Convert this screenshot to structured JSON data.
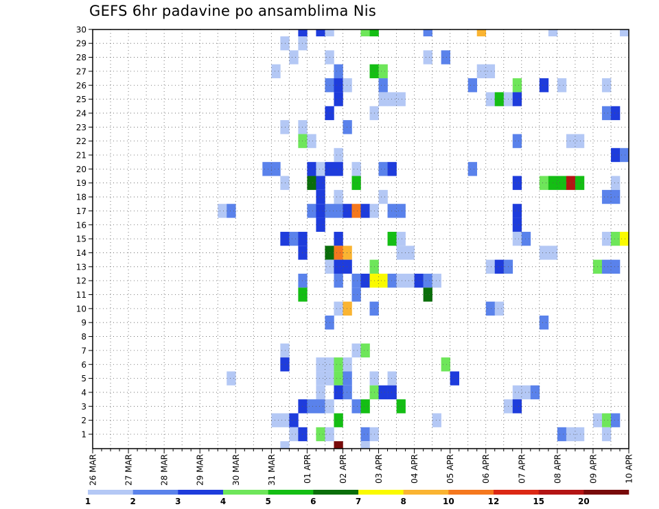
{
  "chart_data": {
    "type": "heatmap",
    "title": "GEFS 6hr padavine po ansamblima Nis",
    "xlabel": "",
    "ylabel": "",
    "y_members": [
      1,
      2,
      3,
      4,
      5,
      6,
      7,
      8,
      9,
      10,
      11,
      12,
      13,
      14,
      15,
      16,
      17,
      18,
      19,
      20,
      21,
      22,
      23,
      24,
      25,
      26,
      27,
      28,
      29,
      30
    ],
    "x_dates": [
      "26 MAR",
      "27 MAR",
      "28 MAR",
      "29 MAR",
      "30 MAR",
      "31 MAR",
      "01 APR",
      "02 APR",
      "03 APR",
      "04 APR",
      "05 APR",
      "06 APR",
      "07 APR",
      "08 APR",
      "09 APR",
      "10 APR"
    ],
    "x_step": "6hr",
    "legend": {
      "placement": "bottom",
      "thresholds": [
        "1",
        "2",
        "3",
        "4",
        "5",
        "6",
        "7",
        "8",
        "10",
        "12",
        "15",
        "20"
      ],
      "colors": [
        "#b4c8f5",
        "#5a82eb",
        "#1e3cdc",
        "#6ee65a",
        "#14be14",
        "#0a6e0a",
        "#fafa00",
        "#fab432",
        "#f5781e",
        "#dc2814",
        "#b41414",
        "#780a0a"
      ]
    },
    "cells": [
      {
        "m": 30,
        "t": 23,
        "c": 2
      },
      {
        "m": 30,
        "t": 25,
        "c": 2
      },
      {
        "m": 30,
        "t": 26,
        "c": 0
      },
      {
        "m": 30,
        "t": 30,
        "c": 3
      },
      {
        "m": 30,
        "t": 31,
        "c": 4
      },
      {
        "m": 30,
        "t": 37,
        "c": 1
      },
      {
        "m": 30,
        "t": 43,
        "c": 7
      },
      {
        "m": 30,
        "t": 51,
        "c": 0
      },
      {
        "m": 30,
        "t": 59,
        "c": 0
      },
      {
        "m": 29,
        "t": 21,
        "c": 0
      },
      {
        "m": 29,
        "t": 23,
        "c": 0
      },
      {
        "m": 28,
        "t": 22,
        "c": 0
      },
      {
        "m": 28,
        "t": 26,
        "c": 0
      },
      {
        "m": 28,
        "t": 37,
        "c": 0
      },
      {
        "m": 28,
        "t": 39,
        "c": 1
      },
      {
        "m": 27,
        "t": 20,
        "c": 0
      },
      {
        "m": 27,
        "t": 27,
        "c": 1
      },
      {
        "m": 27,
        "t": 31,
        "c": 4
      },
      {
        "m": 27,
        "t": 32,
        "c": 3
      },
      {
        "m": 27,
        "t": 43,
        "c": 0
      },
      {
        "m": 27,
        "t": 44,
        "c": 0
      },
      {
        "m": 26,
        "t": 26,
        "c": 1
      },
      {
        "m": 26,
        "t": 27,
        "c": 2
      },
      {
        "m": 26,
        "t": 28,
        "c": 0
      },
      {
        "m": 26,
        "t": 32,
        "c": 1
      },
      {
        "m": 26,
        "t": 42,
        "c": 1
      },
      {
        "m": 26,
        "t": 47,
        "c": 3
      },
      {
        "m": 26,
        "t": 50,
        "c": 2
      },
      {
        "m": 26,
        "t": 52,
        "c": 0
      },
      {
        "m": 26,
        "t": 57,
        "c": 0
      },
      {
        "m": 25,
        "t": 27,
        "c": 2
      },
      {
        "m": 25,
        "t": 32,
        "c": 0
      },
      {
        "m": 25,
        "t": 33,
        "c": 0
      },
      {
        "m": 25,
        "t": 34,
        "c": 0
      },
      {
        "m": 25,
        "t": 44,
        "c": 0
      },
      {
        "m": 25,
        "t": 45,
        "c": 4
      },
      {
        "m": 25,
        "t": 46,
        "c": 0
      },
      {
        "m": 25,
        "t": 47,
        "c": 2
      },
      {
        "m": 24,
        "t": 26,
        "c": 2
      },
      {
        "m": 24,
        "t": 31,
        "c": 0
      },
      {
        "m": 24,
        "t": 57,
        "c": 1
      },
      {
        "m": 24,
        "t": 58,
        "c": 2
      },
      {
        "m": 23,
        "t": 21,
        "c": 0
      },
      {
        "m": 23,
        "t": 23,
        "c": 0
      },
      {
        "m": 23,
        "t": 28,
        "c": 1
      },
      {
        "m": 22,
        "t": 23,
        "c": 3
      },
      {
        "m": 22,
        "t": 24,
        "c": 0
      },
      {
        "m": 22,
        "t": 47,
        "c": 1
      },
      {
        "m": 22,
        "t": 53,
        "c": 0
      },
      {
        "m": 22,
        "t": 54,
        "c": 0
      },
      {
        "m": 21,
        "t": 27,
        "c": 0
      },
      {
        "m": 21,
        "t": 58,
        "c": 2
      },
      {
        "m": 21,
        "t": 59,
        "c": 1
      },
      {
        "m": 20,
        "t": 19,
        "c": 1
      },
      {
        "m": 20,
        "t": 20,
        "c": 1
      },
      {
        "m": 20,
        "t": 24,
        "c": 2
      },
      {
        "m": 20,
        "t": 25,
        "c": 0
      },
      {
        "m": 20,
        "t": 26,
        "c": 2
      },
      {
        "m": 20,
        "t": 27,
        "c": 2
      },
      {
        "m": 20,
        "t": 29,
        "c": 0
      },
      {
        "m": 20,
        "t": 32,
        "c": 1
      },
      {
        "m": 20,
        "t": 33,
        "c": 2
      },
      {
        "m": 20,
        "t": 42,
        "c": 1
      },
      {
        "m": 19,
        "t": 21,
        "c": 0
      },
      {
        "m": 19,
        "t": 24,
        "c": 5
      },
      {
        "m": 19,
        "t": 25,
        "c": 2
      },
      {
        "m": 19,
        "t": 29,
        "c": 4
      },
      {
        "m": 19,
        "t": 47,
        "c": 2
      },
      {
        "m": 19,
        "t": 50,
        "c": 3
      },
      {
        "m": 19,
        "t": 51,
        "c": 4
      },
      {
        "m": 19,
        "t": 52,
        "c": 4
      },
      {
        "m": 19,
        "t": 53,
        "c": 10
      },
      {
        "m": 19,
        "t": 54,
        "c": 4
      },
      {
        "m": 19,
        "t": 58,
        "c": 0
      },
      {
        "m": 18,
        "t": 25,
        "c": 2
      },
      {
        "m": 18,
        "t": 27,
        "c": 0
      },
      {
        "m": 18,
        "t": 32,
        "c": 0
      },
      {
        "m": 18,
        "t": 57,
        "c": 1
      },
      {
        "m": 18,
        "t": 58,
        "c": 1
      },
      {
        "m": 17,
        "t": 14,
        "c": 0
      },
      {
        "m": 17,
        "t": 15,
        "c": 1
      },
      {
        "m": 17,
        "t": 24,
        "c": 1
      },
      {
        "m": 17,
        "t": 25,
        "c": 2
      },
      {
        "m": 17,
        "t": 26,
        "c": 1
      },
      {
        "m": 17,
        "t": 27,
        "c": 1
      },
      {
        "m": 17,
        "t": 28,
        "c": 2
      },
      {
        "m": 17,
        "t": 29,
        "c": 8
      },
      {
        "m": 17,
        "t": 30,
        "c": 2
      },
      {
        "m": 17,
        "t": 31,
        "c": 0
      },
      {
        "m": 17,
        "t": 33,
        "c": 1
      },
      {
        "m": 17,
        "t": 34,
        "c": 1
      },
      {
        "m": 17,
        "t": 47,
        "c": 2
      },
      {
        "m": 16,
        "t": 25,
        "c": 2
      },
      {
        "m": 16,
        "t": 47,
        "c": 2
      },
      {
        "m": 15,
        "t": 21,
        "c": 2
      },
      {
        "m": 15,
        "t": 22,
        "c": 1
      },
      {
        "m": 15,
        "t": 23,
        "c": 2
      },
      {
        "m": 15,
        "t": 27,
        "c": 2
      },
      {
        "m": 15,
        "t": 33,
        "c": 4
      },
      {
        "m": 15,
        "t": 34,
        "c": 0
      },
      {
        "m": 15,
        "t": 47,
        "c": 0
      },
      {
        "m": 15,
        "t": 48,
        "c": 1
      },
      {
        "m": 15,
        "t": 57,
        "c": 0
      },
      {
        "m": 15,
        "t": 58,
        "c": 3
      },
      {
        "m": 15,
        "t": 59,
        "c": 6
      },
      {
        "m": 14,
        "t": 23,
        "c": 2
      },
      {
        "m": 14,
        "t": 26,
        "c": 5
      },
      {
        "m": 14,
        "t": 27,
        "c": 8
      },
      {
        "m": 14,
        "t": 28,
        "c": 7
      },
      {
        "m": 14,
        "t": 34,
        "c": 0
      },
      {
        "m": 14,
        "t": 35,
        "c": 0
      },
      {
        "m": 14,
        "t": 50,
        "c": 0
      },
      {
        "m": 14,
        "t": 51,
        "c": 0
      },
      {
        "m": 13,
        "t": 26,
        "c": 0
      },
      {
        "m": 13,
        "t": 27,
        "c": 2
      },
      {
        "m": 13,
        "t": 28,
        "c": 2
      },
      {
        "m": 13,
        "t": 31,
        "c": 3
      },
      {
        "m": 13,
        "t": 44,
        "c": 0
      },
      {
        "m": 13,
        "t": 45,
        "c": 2
      },
      {
        "m": 13,
        "t": 46,
        "c": 1
      },
      {
        "m": 13,
        "t": 56,
        "c": 3
      },
      {
        "m": 13,
        "t": 57,
        "c": 1
      },
      {
        "m": 13,
        "t": 58,
        "c": 1
      },
      {
        "m": 12,
        "t": 23,
        "c": 1
      },
      {
        "m": 12,
        "t": 27,
        "c": 1
      },
      {
        "m": 12,
        "t": 29,
        "c": 1
      },
      {
        "m": 12,
        "t": 30,
        "c": 2
      },
      {
        "m": 12,
        "t": 31,
        "c": 6
      },
      {
        "m": 12,
        "t": 32,
        "c": 6
      },
      {
        "m": 12,
        "t": 33,
        "c": 1
      },
      {
        "m": 12,
        "t": 34,
        "c": 0
      },
      {
        "m": 12,
        "t": 35,
        "c": 0
      },
      {
        "m": 12,
        "t": 36,
        "c": 2
      },
      {
        "m": 12,
        "t": 37,
        "c": 1
      },
      {
        "m": 12,
        "t": 38,
        "c": 0
      },
      {
        "m": 11,
        "t": 23,
        "c": 4
      },
      {
        "m": 11,
        "t": 29,
        "c": 1
      },
      {
        "m": 11,
        "t": 37,
        "c": 5
      },
      {
        "m": 10,
        "t": 27,
        "c": 0
      },
      {
        "m": 10,
        "t": 28,
        "c": 7
      },
      {
        "m": 10,
        "t": 31,
        "c": 1
      },
      {
        "m": 10,
        "t": 44,
        "c": 1
      },
      {
        "m": 10,
        "t": 45,
        "c": 0
      },
      {
        "m": 9,
        "t": 26,
        "c": 1
      },
      {
        "m": 9,
        "t": 50,
        "c": 1
      },
      {
        "m": 7,
        "t": 21,
        "c": 0
      },
      {
        "m": 7,
        "t": 29,
        "c": 0
      },
      {
        "m": 7,
        "t": 30,
        "c": 3
      },
      {
        "m": 6,
        "t": 21,
        "c": 2
      },
      {
        "m": 6,
        "t": 25,
        "c": 0
      },
      {
        "m": 6,
        "t": 26,
        "c": 0
      },
      {
        "m": 6,
        "t": 27,
        "c": 3
      },
      {
        "m": 6,
        "t": 28,
        "c": 0
      },
      {
        "m": 6,
        "t": 39,
        "c": 3
      },
      {
        "m": 5,
        "t": 15,
        "c": 0
      },
      {
        "m": 5,
        "t": 25,
        "c": 0
      },
      {
        "m": 5,
        "t": 26,
        "c": 0
      },
      {
        "m": 5,
        "t": 27,
        "c": 3
      },
      {
        "m": 5,
        "t": 28,
        "c": 1
      },
      {
        "m": 5,
        "t": 31,
        "c": 0
      },
      {
        "m": 5,
        "t": 33,
        "c": 0
      },
      {
        "m": 5,
        "t": 40,
        "c": 2
      },
      {
        "m": 4,
        "t": 25,
        "c": 0
      },
      {
        "m": 4,
        "t": 27,
        "c": 2
      },
      {
        "m": 4,
        "t": 28,
        "c": 1
      },
      {
        "m": 4,
        "t": 31,
        "c": 3
      },
      {
        "m": 4,
        "t": 32,
        "c": 2
      },
      {
        "m": 4,
        "t": 33,
        "c": 2
      },
      {
        "m": 4,
        "t": 47,
        "c": 0
      },
      {
        "m": 4,
        "t": 48,
        "c": 0
      },
      {
        "m": 4,
        "t": 49,
        "c": 1
      },
      {
        "m": 3,
        "t": 23,
        "c": 2
      },
      {
        "m": 3,
        "t": 24,
        "c": 1
      },
      {
        "m": 3,
        "t": 25,
        "c": 1
      },
      {
        "m": 3,
        "t": 26,
        "c": 0
      },
      {
        "m": 3,
        "t": 29,
        "c": 1
      },
      {
        "m": 3,
        "t": 30,
        "c": 4
      },
      {
        "m": 3,
        "t": 34,
        "c": 4
      },
      {
        "m": 3,
        "t": 46,
        "c": 0
      },
      {
        "m": 3,
        "t": 47,
        "c": 2
      },
      {
        "m": 2,
        "t": 20,
        "c": 0
      },
      {
        "m": 2,
        "t": 21,
        "c": 0
      },
      {
        "m": 2,
        "t": 22,
        "c": 2
      },
      {
        "m": 2,
        "t": 27,
        "c": 4
      },
      {
        "m": 2,
        "t": 38,
        "c": 0
      },
      {
        "m": 2,
        "t": 56,
        "c": 0
      },
      {
        "m": 2,
        "t": 57,
        "c": 3
      },
      {
        "m": 2,
        "t": 58,
        "c": 1
      },
      {
        "m": 1,
        "t": 22,
        "c": 0
      },
      {
        "m": 1,
        "t": 23,
        "c": 2
      },
      {
        "m": 1,
        "t": 25,
        "c": 3
      },
      {
        "m": 1,
        "t": 26,
        "c": 0
      },
      {
        "m": 1,
        "t": 30,
        "c": 1
      },
      {
        "m": 1,
        "t": 31,
        "c": 0
      },
      {
        "m": 1,
        "t": 52,
        "c": 1
      },
      {
        "m": 1,
        "t": 53,
        "c": 0
      },
      {
        "m": 1,
        "t": 54,
        "c": 0
      },
      {
        "m": 1,
        "t": 57,
        "c": 0
      },
      {
        "m": 0,
        "t": 21,
        "c": 0
      },
      {
        "m": 0,
        "t": 27,
        "c": 11
      },
      {
        "m": 0,
        "t": 30,
        "c": 0
      }
    ]
  }
}
